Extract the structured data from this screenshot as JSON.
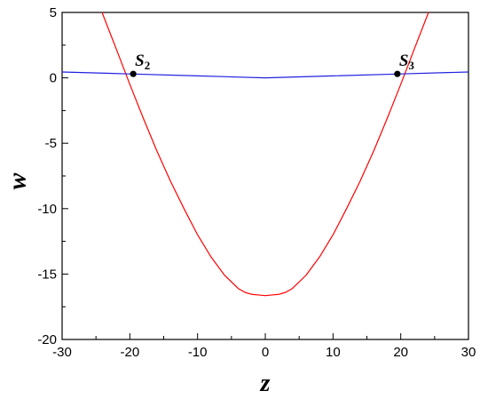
{
  "chart_data": {
    "type": "line",
    "xlabel": "z",
    "ylabel": "w",
    "xlim": [
      -30,
      30
    ],
    "ylim": [
      -20,
      5
    ],
    "x_ticks": [
      -30,
      -20,
      -10,
      0,
      10,
      20,
      30
    ],
    "y_ticks": [
      5,
      0,
      -5,
      -10,
      -15,
      -20
    ],
    "x_tick_labels": [
      "-30",
      "-20",
      "-10",
      "0",
      "10",
      "20",
      "30"
    ],
    "y_tick_labels": [
      "5",
      "0",
      "-5",
      "-10",
      "-15",
      "-20"
    ],
    "grid": false,
    "series": [
      {
        "color": "#ff0000",
        "x": [
          -24.1,
          -22,
          -20,
          -18,
          -16,
          -14,
          -12,
          -10,
          -8,
          -6,
          -4,
          -3,
          -2,
          -1,
          0,
          1,
          2,
          3,
          4,
          6,
          8,
          10,
          12,
          14,
          16,
          18,
          20,
          22,
          24.1
        ],
        "y": [
          5,
          2.2,
          -0.5,
          -3.1,
          -5.6,
          -7.9,
          -10,
          -12,
          -13.7,
          -15.1,
          -16.1,
          -16.4,
          -16.55,
          -16.6,
          -16.65,
          -16.6,
          -16.55,
          -16.4,
          -16.1,
          -15.1,
          -13.7,
          -12,
          -10,
          -7.9,
          -5.6,
          -3.1,
          -0.5,
          2.2,
          5
        ]
      },
      {
        "color": "#2020e0",
        "x": [
          -30,
          -20,
          -10,
          0,
          10,
          20,
          30
        ],
        "y": [
          0.45,
          0.3,
          0.15,
          0.0,
          0.15,
          0.3,
          0.45
        ]
      }
    ],
    "points": [
      {
        "label": "S",
        "sub": "2",
        "x": -19.5,
        "y": 0.3
      },
      {
        "label": "S",
        "sub": "3",
        "x": 19.5,
        "y": 0.3
      }
    ]
  }
}
